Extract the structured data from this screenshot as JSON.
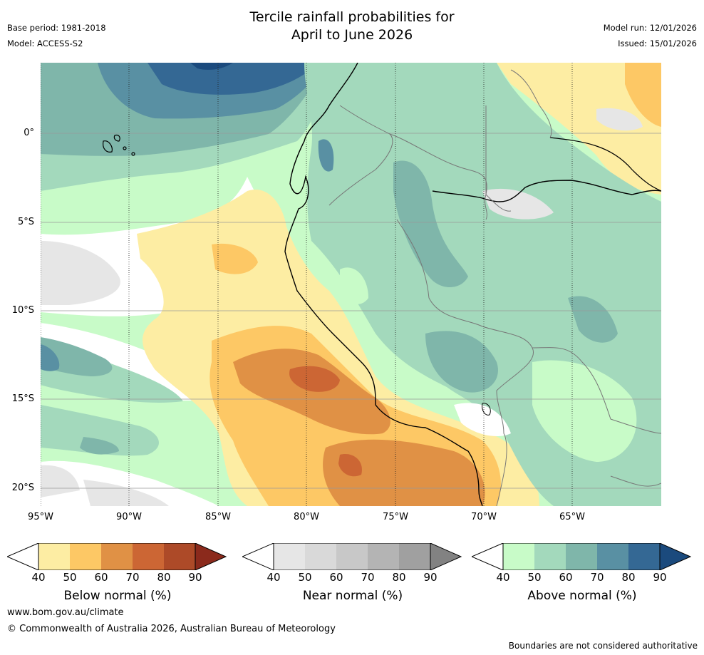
{
  "header": {
    "title_line1": "Tercile rainfall probabilities for",
    "title_line2": "April to June 2026",
    "base_period": "Base period: 1981-2018",
    "model": "Model: ACCESS-S2",
    "model_run": "Model run: 12/01/2026",
    "issued": "Issued: 15/01/2026"
  },
  "map": {
    "lat_ticks": [
      "0°",
      "5°S",
      "10°S",
      "15°S",
      "20°S"
    ],
    "lon_ticks": [
      "95°W",
      "90°W",
      "85°W",
      "80°W",
      "75°W",
      "70°W",
      "65°W"
    ]
  },
  "legends": {
    "below": {
      "label": "Below normal (%)",
      "ticks": [
        "40",
        "50",
        "60",
        "70",
        "80",
        "90"
      ],
      "colors": [
        "#fdeda3",
        "#fdc865",
        "#e09145",
        "#cc6634",
        "#ad4a28",
        "#8b2a1c"
      ]
    },
    "near": {
      "label": "Near normal (%)",
      "ticks": [
        "40",
        "50",
        "60",
        "70",
        "80",
        "90"
      ],
      "colors": [
        "#e6e6e6",
        "#d9d9d9",
        "#c8c8c8",
        "#b4b4b4",
        "#a0a0a0",
        "#828282"
      ]
    },
    "above": {
      "label": "Above normal (%)",
      "ticks": [
        "40",
        "50",
        "60",
        "70",
        "80",
        "90"
      ],
      "colors": [
        "#c8fbc8",
        "#a3d9bc",
        "#7fb6aa",
        "#5990a3",
        "#346894",
        "#1b4a7d"
      ]
    }
  },
  "footer": {
    "url": "www.bom.gov.au/climate",
    "copyright": "© Commonwealth of Australia 2026, Australian Bureau of Meteorology",
    "disclaimer": "Boundaries are not considered authoritative"
  }
}
